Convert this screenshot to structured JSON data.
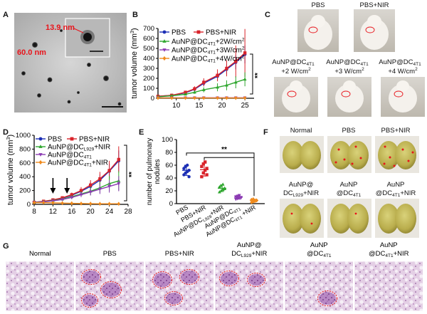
{
  "panels": {
    "A": "A",
    "B": "B",
    "C": "C",
    "D": "D",
    "E": "E",
    "F": "F",
    "G": "G"
  },
  "panel_a": {
    "label_np": "13.9 nm",
    "label_cluster": "60.0 nm",
    "colors": {
      "annotation": "#e8141b"
    }
  },
  "panel_c": {
    "top": [
      "PBS",
      "PBS+NIR"
    ],
    "bottom": [
      {
        "l1": "AuNP@DC",
        "sub": "4T1",
        "l2": "+2 W/cm",
        "sup": "2"
      },
      {
        "l1": "AuNP@DC",
        "sub": "4T1",
        "l2": "+3 W/cm",
        "sup": "2"
      },
      {
        "l1": "AuNP@DC",
        "sub": "4T1",
        "l2": "+4 W/cm",
        "sup": "2"
      }
    ]
  },
  "panel_f": {
    "top": [
      "Normal",
      "PBS",
      "PBS+NIR"
    ],
    "bottom": [
      {
        "l1": "AuNP@",
        "l2a": "DC",
        "sub": "L929",
        "l2b": "+NIR"
      },
      {
        "l1": "AuNP",
        "l2a": "@DC",
        "sub": "4T1",
        "l2b": ""
      },
      {
        "l1": "AuNP",
        "l2a": "@DC",
        "sub": "4T1",
        "l2b": "+NIR"
      }
    ]
  },
  "panel_g": {
    "labels": [
      {
        "l1": "Normal",
        "l2a": "",
        "sub": "",
        "l2b": ""
      },
      {
        "l1": "PBS",
        "l2a": "",
        "sub": "",
        "l2b": ""
      },
      {
        "l1": "PBS+NIR",
        "l2a": "",
        "sub": "",
        "l2b": ""
      },
      {
        "l1": "AuNP@",
        "l2a": "DC",
        "sub": "L929",
        "l2b": "+NIR"
      },
      {
        "l1": "AuNP",
        "l2a": "@DC",
        "sub": "4T1",
        "l2b": ""
      },
      {
        "l1": "AuNP",
        "l2a": "@DC",
        "sub": "4T1",
        "l2b": "+NIR"
      }
    ]
  },
  "chart_data": [
    {
      "id": "B",
      "type": "line",
      "ylabel": "tumor volume (mm3)",
      "xticks": [
        10,
        15,
        20,
        25
      ],
      "yticks": [
        0,
        100,
        200,
        300,
        400,
        500,
        600,
        700
      ],
      "xlim": [
        6,
        27
      ],
      "ylim": [
        0,
        700
      ],
      "significance": "**",
      "series": [
        {
          "name": "PBS",
          "color": "#1c2fb5",
          "marker": "circle",
          "x": [
            6,
            9,
            12,
            14,
            16,
            19,
            21,
            23,
            25
          ],
          "y": [
            20,
            30,
            55,
            90,
            150,
            220,
            290,
            360,
            440
          ],
          "err": [
            5,
            8,
            10,
            20,
            30,
            40,
            50,
            70,
            90
          ]
        },
        {
          "name": "PBS+NIR",
          "color": "#d9232a",
          "marker": "square",
          "x": [
            6,
            9,
            12,
            14,
            16,
            19,
            21,
            23,
            25
          ],
          "y": [
            20,
            30,
            60,
            95,
            160,
            230,
            300,
            370,
            455
          ],
          "err": [
            5,
            8,
            12,
            25,
            40,
            60,
            80,
            160,
            240
          ]
        },
        {
          "name": "AuNP@DC4T1+2W/cm2",
          "color": "#2ea62e",
          "marker": "tri-up",
          "x": [
            6,
            9,
            12,
            14,
            16,
            19,
            21,
            23,
            25
          ],
          "y": [
            15,
            25,
            40,
            60,
            85,
            110,
            130,
            160,
            190
          ],
          "err": [
            4,
            6,
            10,
            15,
            25,
            40,
            50,
            60,
            70
          ]
        },
        {
          "name": "AuNP@DC4T1+3W/cm2",
          "color": "#8b3ab3",
          "marker": "tri-down",
          "x": [
            6,
            9,
            12,
            14,
            16,
            19,
            21,
            23,
            25
          ],
          "y": [
            5,
            5,
            5,
            5,
            5,
            5,
            5,
            5,
            5
          ],
          "err": [
            2,
            2,
            2,
            2,
            2,
            2,
            2,
            2,
            2
          ]
        },
        {
          "name": "AuNP@DC4T1+4W/cm2",
          "color": "#f08a1c",
          "marker": "diamond",
          "x": [
            6,
            9,
            12,
            14,
            16,
            19,
            21,
            23,
            25
          ],
          "y": [
            3,
            3,
            3,
            3,
            3,
            3,
            3,
            3,
            3
          ],
          "err": [
            1,
            1,
            1,
            1,
            1,
            1,
            1,
            1,
            1
          ]
        }
      ]
    },
    {
      "id": "D",
      "type": "line",
      "ylabel": "tumor volume (mm3)",
      "xticks": [
        8,
        12,
        16,
        20,
        24,
        28
      ],
      "yticks": [
        0,
        200,
        400,
        600,
        800,
        1000
      ],
      "xlim": [
        8,
        28
      ],
      "ylim": [
        0,
        1000
      ],
      "arrows_at_x": [
        12,
        15
      ],
      "significance": "**",
      "series": [
        {
          "name": "PBS",
          "color": "#1c2fb5",
          "marker": "circle",
          "x": [
            8,
            10,
            12,
            14,
            16,
            18,
            20,
            22,
            24,
            26
          ],
          "y": [
            30,
            40,
            60,
            90,
            130,
            190,
            260,
            350,
            480,
            630
          ],
          "err": [
            5,
            8,
            10,
            15,
            25,
            40,
            60,
            80,
            110,
            150
          ]
        },
        {
          "name": "PBS+NIR",
          "color": "#d9232a",
          "marker": "square",
          "x": [
            8,
            10,
            12,
            14,
            16,
            18,
            20,
            22,
            24,
            26
          ],
          "y": [
            30,
            45,
            65,
            95,
            140,
            200,
            280,
            370,
            490,
            650
          ],
          "err": [
            5,
            8,
            12,
            20,
            30,
            50,
            70,
            100,
            140,
            190
          ]
        },
        {
          "name": "AuNP@DCL929+NIR",
          "color": "#2ea62e",
          "marker": "tri-up",
          "x": [
            8,
            10,
            12,
            14,
            16,
            18,
            20,
            22,
            24,
            26
          ],
          "y": [
            30,
            38,
            55,
            75,
            110,
            150,
            190,
            240,
            300,
            340
          ],
          "err": [
            5,
            8,
            10,
            15,
            25,
            40,
            60,
            80,
            110,
            140
          ]
        },
        {
          "name": "AuNP@DC4T1",
          "color": "#8b3ab3",
          "marker": "tri-down",
          "x": [
            8,
            10,
            12,
            14,
            16,
            18,
            20,
            22,
            24,
            26
          ],
          "y": [
            28,
            35,
            50,
            70,
            100,
            140,
            180,
            220,
            260,
            300
          ],
          "err": [
            5,
            6,
            10,
            15,
            25,
            35,
            50,
            70,
            90,
            110
          ]
        },
        {
          "name": "AuNP@DC4T1+NIR",
          "color": "#f08a1c",
          "marker": "diamond",
          "x": [
            8,
            10,
            12,
            14,
            16,
            18,
            20,
            22,
            24,
            26
          ],
          "y": [
            25,
            25,
            22,
            18,
            15,
            12,
            10,
            8,
            8,
            8
          ],
          "err": [
            3,
            3,
            3,
            3,
            3,
            3,
            3,
            3,
            3,
            3
          ]
        }
      ]
    },
    {
      "id": "E",
      "type": "scatter",
      "ylabel": "number of pulmonary nodules",
      "yticks": [
        0,
        20,
        40,
        60,
        80,
        100
      ],
      "ylim": [
        0,
        100
      ],
      "significance": "**",
      "categories": [
        "PBS",
        "PBS+NIR",
        "AuNP@DCL929+NIR",
        "AuNP@DC4T1",
        "AuNP@DC4T1 +NIR"
      ],
      "groups": [
        {
          "name": "PBS",
          "color": "#1c2fb5",
          "marker": "circle",
          "mean": 52,
          "sd": 8,
          "points": [
            45,
            48,
            50,
            52,
            55,
            58,
            60,
            42
          ]
        },
        {
          "name": "PBS+NIR",
          "color": "#d9232a",
          "marker": "square",
          "mean": 53,
          "sd": 10,
          "points": [
            42,
            48,
            52,
            55,
            58,
            62,
            65,
            45
          ]
        },
        {
          "name": "AuNP@DCL929+NIR",
          "color": "#2ea62e",
          "marker": "tri-up",
          "mean": 24,
          "sd": 5,
          "points": [
            18,
            20,
            22,
            24,
            26,
            28,
            30,
            23
          ]
        },
        {
          "name": "AuNP@DC4T1",
          "color": "#8b3ab3",
          "marker": "tri-down",
          "mean": 10,
          "sd": 3,
          "points": [
            7,
            8,
            9,
            10,
            11,
            12,
            13,
            9
          ]
        },
        {
          "name": "AuNP@DC4T1 +NIR",
          "color": "#f08a1c",
          "marker": "diamond",
          "mean": 5,
          "sd": 2,
          "points": [
            2,
            3,
            4,
            5,
            6,
            7,
            4,
            5
          ]
        }
      ]
    }
  ]
}
